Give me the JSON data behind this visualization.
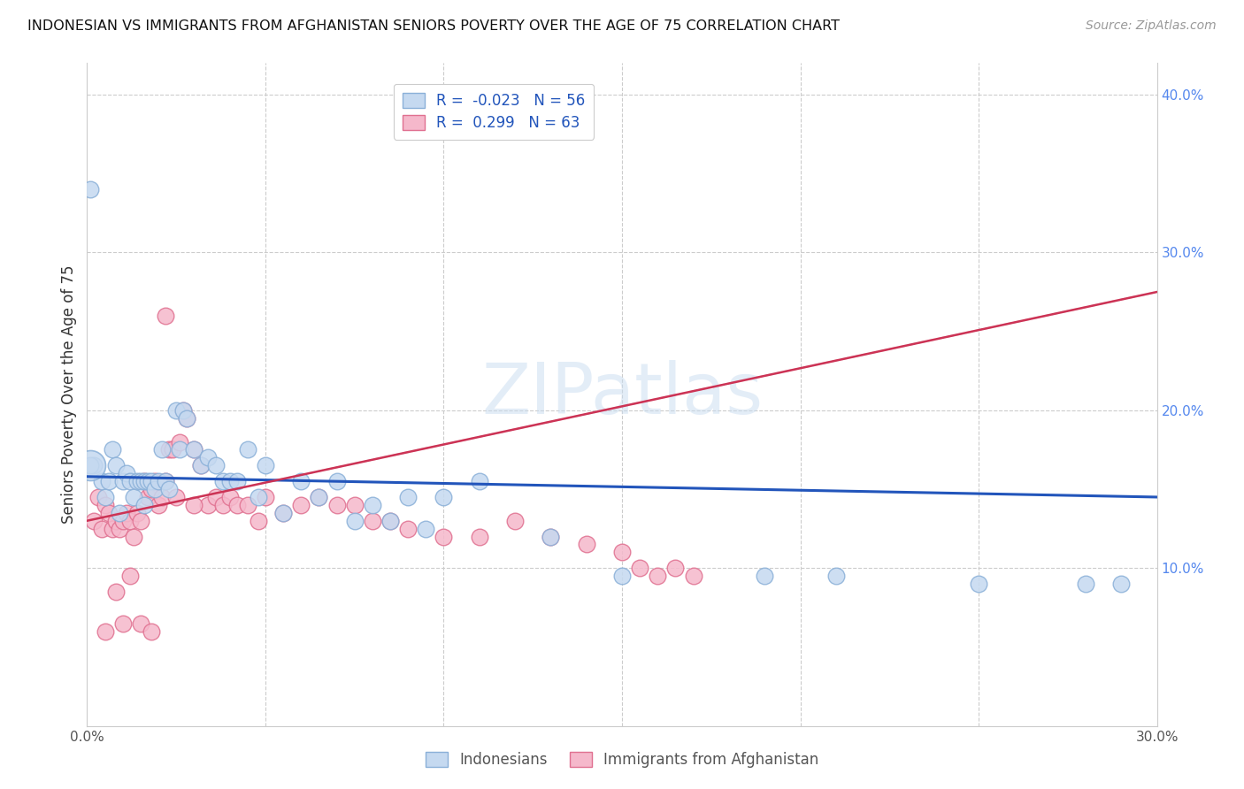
{
  "title": "INDONESIAN VS IMMIGRANTS FROM AFGHANISTAN SENIORS POVERTY OVER THE AGE OF 75 CORRELATION CHART",
  "source": "Source: ZipAtlas.com",
  "ylabel": "Seniors Poverty Over the Age of 75",
  "xlim": [
    0.0,
    0.3
  ],
  "ylim": [
    0.0,
    0.42
  ],
  "indonesian_R": -0.023,
  "indonesian_N": 56,
  "afghan_R": 0.299,
  "afghan_N": 63,
  "blue_fill": "#c5d9f0",
  "blue_edge": "#8ab0d8",
  "pink_fill": "#f5b8cb",
  "pink_edge": "#e07090",
  "blue_line": "#2255bb",
  "pink_line": "#cc3355",
  "pink_dash": "#f0b0c0",
  "watermark": "ZIPatlas",
  "indo_x": [
    0.002,
    0.004,
    0.005,
    0.006,
    0.007,
    0.008,
    0.009,
    0.01,
    0.011,
    0.012,
    0.013,
    0.014,
    0.015,
    0.016,
    0.016,
    0.017,
    0.018,
    0.019,
    0.02,
    0.021,
    0.022,
    0.023,
    0.025,
    0.026,
    0.027,
    0.028,
    0.03,
    0.032,
    0.034,
    0.036,
    0.038,
    0.04,
    0.042,
    0.045,
    0.048,
    0.05,
    0.055,
    0.06,
    0.065,
    0.07,
    0.075,
    0.08,
    0.085,
    0.09,
    0.095,
    0.1,
    0.11,
    0.13,
    0.15,
    0.19,
    0.21,
    0.25,
    0.28,
    0.29,
    0.001,
    0.001
  ],
  "indo_y": [
    0.165,
    0.155,
    0.145,
    0.155,
    0.175,
    0.165,
    0.135,
    0.155,
    0.16,
    0.155,
    0.145,
    0.155,
    0.155,
    0.155,
    0.14,
    0.155,
    0.155,
    0.15,
    0.155,
    0.175,
    0.155,
    0.15,
    0.2,
    0.175,
    0.2,
    0.195,
    0.175,
    0.165,
    0.17,
    0.165,
    0.155,
    0.155,
    0.155,
    0.175,
    0.145,
    0.165,
    0.135,
    0.155,
    0.145,
    0.155,
    0.13,
    0.14,
    0.13,
    0.145,
    0.125,
    0.145,
    0.155,
    0.12,
    0.095,
    0.095,
    0.095,
    0.09,
    0.09,
    0.09,
    0.165,
    0.34
  ],
  "afghan_x": [
    0.002,
    0.003,
    0.004,
    0.005,
    0.006,
    0.007,
    0.008,
    0.009,
    0.01,
    0.011,
    0.012,
    0.013,
    0.014,
    0.015,
    0.016,
    0.017,
    0.018,
    0.019,
    0.02,
    0.021,
    0.022,
    0.023,
    0.024,
    0.025,
    0.026,
    0.027,
    0.028,
    0.03,
    0.032,
    0.034,
    0.036,
    0.038,
    0.04,
    0.042,
    0.045,
    0.048,
    0.05,
    0.055,
    0.06,
    0.065,
    0.07,
    0.075,
    0.08,
    0.085,
    0.09,
    0.1,
    0.11,
    0.12,
    0.13,
    0.14,
    0.15,
    0.155,
    0.16,
    0.165,
    0.17,
    0.01,
    0.015,
    0.018,
    0.012,
    0.008,
    0.005,
    0.022,
    0.03
  ],
  "afghan_y": [
    0.13,
    0.145,
    0.125,
    0.14,
    0.135,
    0.125,
    0.13,
    0.125,
    0.13,
    0.135,
    0.13,
    0.12,
    0.135,
    0.13,
    0.155,
    0.145,
    0.15,
    0.155,
    0.14,
    0.145,
    0.155,
    0.175,
    0.175,
    0.145,
    0.18,
    0.2,
    0.195,
    0.175,
    0.165,
    0.14,
    0.145,
    0.14,
    0.145,
    0.14,
    0.14,
    0.13,
    0.145,
    0.135,
    0.14,
    0.145,
    0.14,
    0.14,
    0.13,
    0.13,
    0.125,
    0.12,
    0.12,
    0.13,
    0.12,
    0.115,
    0.11,
    0.1,
    0.095,
    0.1,
    0.095,
    0.065,
    0.065,
    0.06,
    0.095,
    0.085,
    0.06,
    0.26,
    0.14
  ]
}
